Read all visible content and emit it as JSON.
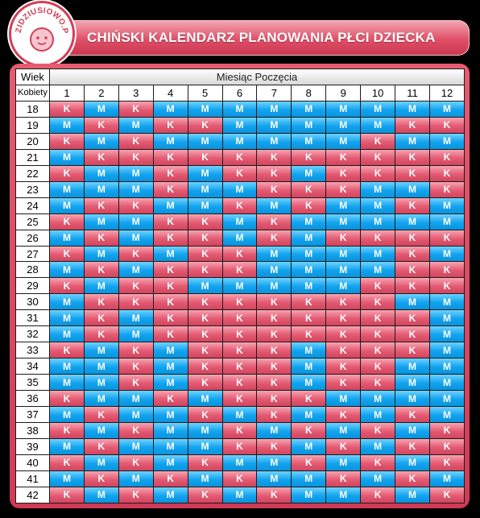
{
  "header": {
    "title": "CHIŃSKI KALENDARZ PLANOWANIA PŁCI DZIECKA",
    "logo_text": "DZIDZIUSIOWO.PL"
  },
  "table": {
    "corner_top": "Wiek",
    "corner_bottom": "Kobiety",
    "month_header": "Miesiąc Poczęcia",
    "months": [
      "1",
      "2",
      "3",
      "4",
      "5",
      "6",
      "7",
      "8",
      "9",
      "10",
      "11",
      "12"
    ],
    "rows": [
      {
        "age": "18",
        "cells": [
          "K",
          "M",
          "K",
          "M",
          "M",
          "M",
          "M",
          "M",
          "M",
          "M",
          "M",
          "M"
        ]
      },
      {
        "age": "19",
        "cells": [
          "M",
          "K",
          "M",
          "K",
          "K",
          "M",
          "M",
          "M",
          "M",
          "M",
          "K",
          "K"
        ]
      },
      {
        "age": "20",
        "cells": [
          "K",
          "M",
          "K",
          "M",
          "M",
          "M",
          "M",
          "M",
          "M",
          "K",
          "M",
          "M"
        ]
      },
      {
        "age": "21",
        "cells": [
          "M",
          "K",
          "K",
          "K",
          "K",
          "K",
          "K",
          "K",
          "K",
          "K",
          "K",
          "K"
        ]
      },
      {
        "age": "22",
        "cells": [
          "K",
          "M",
          "M",
          "K",
          "M",
          "K",
          "K",
          "M",
          "K",
          "K",
          "K",
          "K"
        ]
      },
      {
        "age": "23",
        "cells": [
          "M",
          "M",
          "M",
          "K",
          "M",
          "M",
          "K",
          "K",
          "K",
          "M",
          "M",
          "K"
        ]
      },
      {
        "age": "24",
        "cells": [
          "M",
          "K",
          "K",
          "M",
          "M",
          "K",
          "M",
          "K",
          "M",
          "M",
          "K",
          "M"
        ]
      },
      {
        "age": "25",
        "cells": [
          "K",
          "M",
          "M",
          "K",
          "K",
          "M",
          "K",
          "M",
          "M",
          "M",
          "M",
          "M"
        ]
      },
      {
        "age": "26",
        "cells": [
          "M",
          "K",
          "M",
          "K",
          "K",
          "M",
          "K",
          "M",
          "K",
          "K",
          "K",
          "K"
        ]
      },
      {
        "age": "27",
        "cells": [
          "K",
          "M",
          "K",
          "M",
          "K",
          "K",
          "M",
          "M",
          "M",
          "M",
          "K",
          "M"
        ]
      },
      {
        "age": "28",
        "cells": [
          "M",
          "K",
          "M",
          "K",
          "K",
          "K",
          "M",
          "M",
          "M",
          "M",
          "K",
          "K"
        ]
      },
      {
        "age": "29",
        "cells": [
          "K",
          "M",
          "K",
          "K",
          "M",
          "M",
          "M",
          "M",
          "M",
          "K",
          "K",
          "K"
        ]
      },
      {
        "age": "30",
        "cells": [
          "M",
          "K",
          "K",
          "K",
          "K",
          "K",
          "K",
          "K",
          "K",
          "K",
          "M",
          "M"
        ]
      },
      {
        "age": "31",
        "cells": [
          "M",
          "K",
          "M",
          "K",
          "K",
          "K",
          "K",
          "K",
          "K",
          "K",
          "K",
          "M"
        ]
      },
      {
        "age": "32",
        "cells": [
          "M",
          "K",
          "M",
          "K",
          "K",
          "K",
          "K",
          "K",
          "K",
          "K",
          "K",
          "M"
        ]
      },
      {
        "age": "33",
        "cells": [
          "K",
          "M",
          "K",
          "M",
          "K",
          "K",
          "K",
          "M",
          "K",
          "K",
          "K",
          "M"
        ]
      },
      {
        "age": "34",
        "cells": [
          "M",
          "M",
          "K",
          "M",
          "K",
          "K",
          "K",
          "M",
          "K",
          "K",
          "M",
          "M"
        ]
      },
      {
        "age": "35",
        "cells": [
          "M",
          "M",
          "K",
          "M",
          "K",
          "K",
          "K",
          "M",
          "K",
          "K",
          "M",
          "M"
        ]
      },
      {
        "age": "36",
        "cells": [
          "K",
          "M",
          "M",
          "K",
          "M",
          "K",
          "K",
          "K",
          "M",
          "M",
          "M",
          "M"
        ]
      },
      {
        "age": "37",
        "cells": [
          "M",
          "K",
          "M",
          "M",
          "K",
          "M",
          "K",
          "M",
          "K",
          "M",
          "K",
          "M"
        ]
      },
      {
        "age": "38",
        "cells": [
          "K",
          "M",
          "K",
          "M",
          "M",
          "K",
          "M",
          "K",
          "M",
          "K",
          "M",
          "K"
        ]
      },
      {
        "age": "39",
        "cells": [
          "M",
          "K",
          "M",
          "M",
          "M",
          "K",
          "K",
          "M",
          "K",
          "M",
          "K",
          "K"
        ]
      },
      {
        "age": "40",
        "cells": [
          "K",
          "M",
          "K",
          "M",
          "K",
          "M",
          "M",
          "K",
          "M",
          "K",
          "M",
          "K"
        ]
      },
      {
        "age": "41",
        "cells": [
          "M",
          "K",
          "M",
          "K",
          "M",
          "K",
          "M",
          "M",
          "K",
          "M",
          "K",
          "M"
        ]
      },
      {
        "age": "42",
        "cells": [
          "K",
          "M",
          "K",
          "M",
          "K",
          "M",
          "K",
          "M",
          "M",
          "K",
          "M",
          "K"
        ]
      }
    ]
  },
  "colors": {
    "M": "#12a3ef",
    "K": "#e35a72",
    "frame": "#d84a63"
  }
}
